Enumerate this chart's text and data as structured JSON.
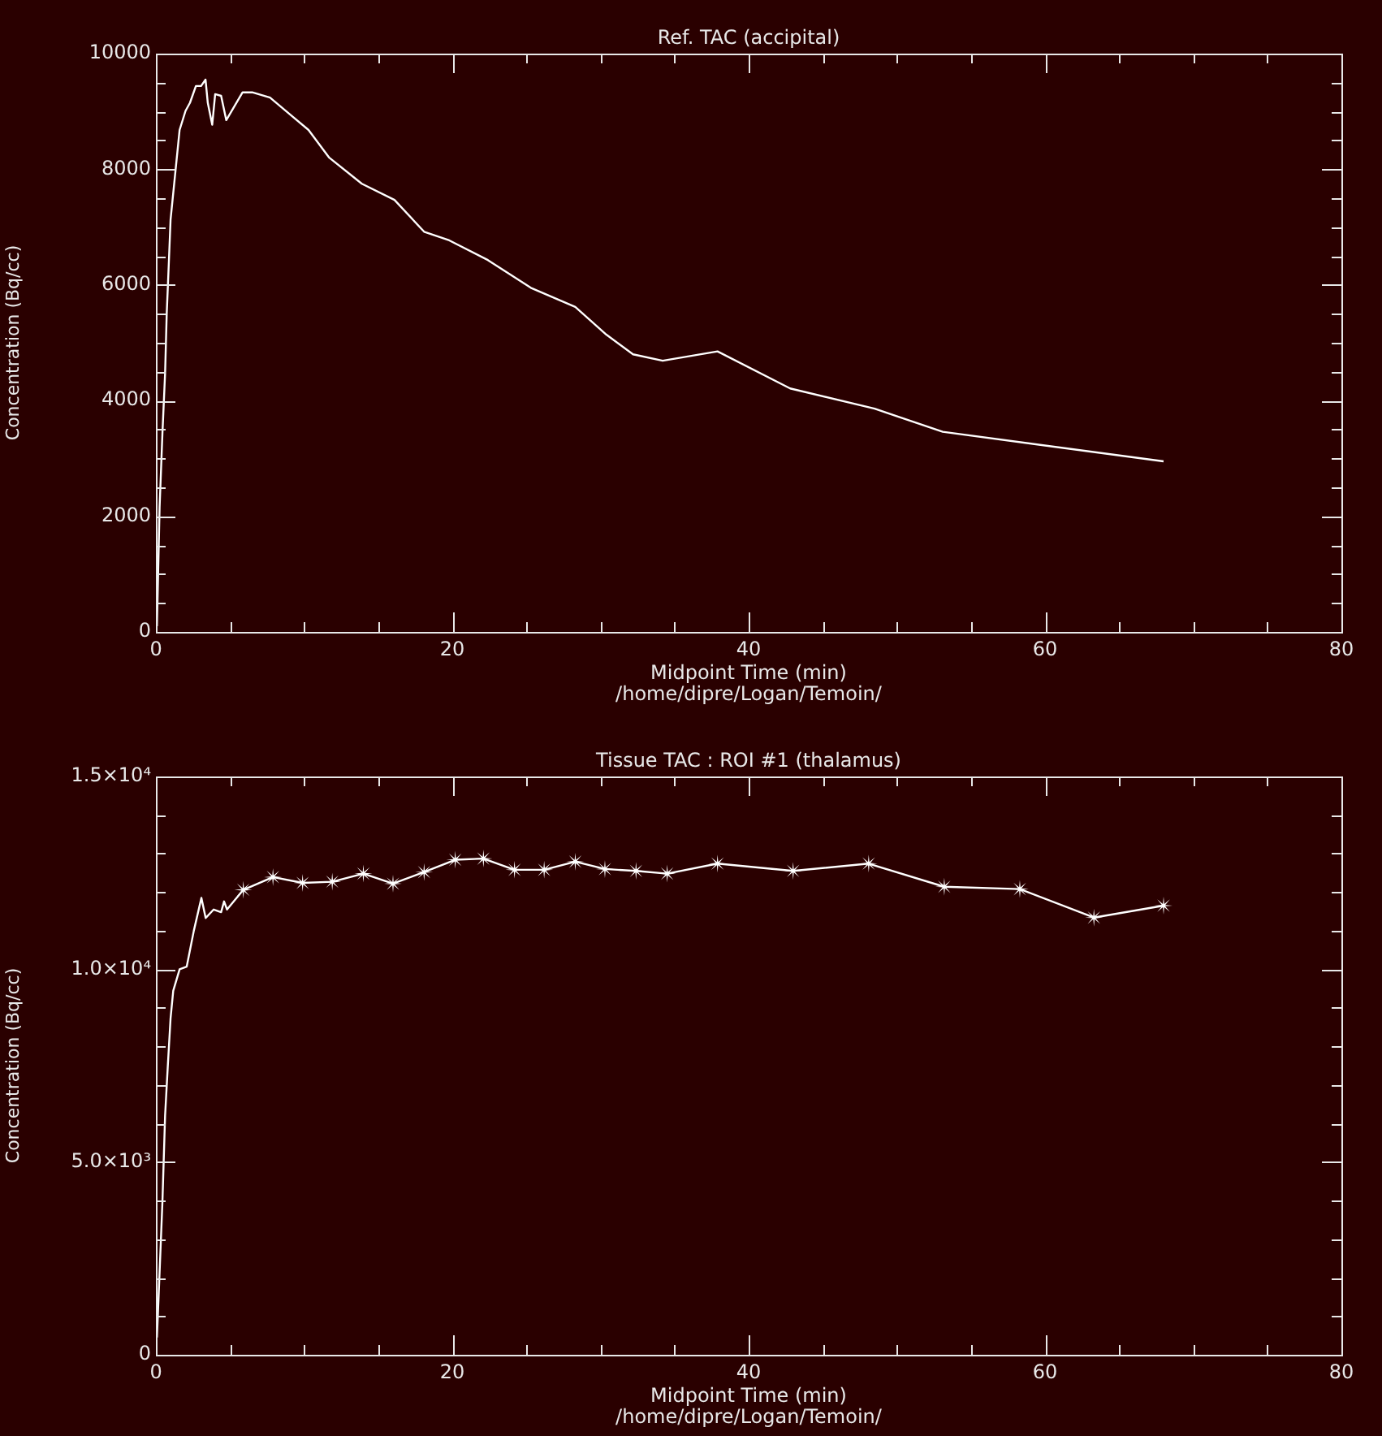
{
  "chart_data": [
    {
      "type": "line",
      "title": "Ref. TAC (accipital)",
      "xlabel": "Midpoint Time (min)",
      "ylabel": "Concentration (Bq/cc)",
      "annotations": [
        "/home/dipre/Logan/Temoin/"
      ],
      "series": [
        {
          "color": "#ffffff",
          "marker": "none",
          "x": [
            0.07,
            0.25,
            0.44,
            0.62,
            0.73,
            0.88,
            0.99,
            1.6,
            2.0,
            2.3,
            2.7,
            3.05,
            3.35,
            3.5,
            3.8,
            4.0,
            4.4,
            4.75,
            5.85,
            6.5,
            7.7,
            9.0,
            10.3,
            11.7,
            13.9,
            16.1,
            18.1,
            19.8,
            22.4,
            25.3,
            28.3,
            30.4,
            32.2,
            34.2,
            37.9,
            42.8,
            48.5,
            53.1,
            68.0
          ],
          "values": [
            100,
            2160,
            3430,
            4470,
            5500,
            6430,
            7130,
            8680,
            9010,
            9150,
            9440,
            9440,
            9550,
            9150,
            8770,
            9300,
            9270,
            8850,
            9330,
            9330,
            9240,
            8960,
            8680,
            8200,
            7750,
            7470,
            6920,
            6770,
            6430,
            5950,
            5620,
            5140,
            4800,
            4690,
            4850,
            4210,
            3860,
            3460,
            2950
          ]
        }
      ],
      "xlim": [
        0,
        80
      ],
      "xticks": [
        0,
        {
          "value": 5,
          "label": null
        },
        {
          "value": 10,
          "label": null
        },
        {
          "value": 15,
          "label": null
        },
        20,
        {
          "value": 25,
          "label": null
        },
        {
          "value": 30,
          "label": null
        },
        {
          "value": 35,
          "label": null
        },
        40,
        {
          "value": 45,
          "label": null
        },
        {
          "value": 50,
          "label": null
        },
        {
          "value": 55,
          "label": null
        },
        60,
        {
          "value": 65,
          "label": null
        },
        {
          "value": 70,
          "label": null
        },
        {
          "value": 75,
          "label": null
        },
        80
      ],
      "ylim": [
        0,
        10000
      ],
      "yticks": [
        0,
        {
          "value": 500,
          "label": null
        },
        {
          "value": 1000,
          "label": null
        },
        {
          "value": 1500,
          "label": null
        },
        2000,
        {
          "value": 2500,
          "label": null
        },
        {
          "value": 3000,
          "label": null
        },
        {
          "value": 3500,
          "label": null
        },
        4000,
        {
          "value": 4500,
          "label": null
        },
        {
          "value": 5000,
          "label": null
        },
        {
          "value": 5500,
          "label": null
        },
        6000,
        {
          "value": 6500,
          "label": null
        },
        {
          "value": 7000,
          "label": null
        },
        {
          "value": 7500,
          "label": null
        },
        8000,
        {
          "value": 8500,
          "label": null
        },
        {
          "value": 9000,
          "label": null
        },
        {
          "value": 9500,
          "label": null
        },
        10000
      ],
      "grid": false,
      "legend": false
    },
    {
      "type": "line",
      "title": "Tissue TAC : ROI #1 (thalamus)",
      "xlabel": "Midpoint Time (min)",
      "ylabel": "Concentration (Bq/cc)",
      "annotations": [
        "/home/dipre/Logan/Temoin/"
      ],
      "series": [
        {
          "color": "#ffffff",
          "marker": "none",
          "x": [
            0.07,
            0.25,
            0.44,
            0.62,
            0.8,
            0.99,
            1.17,
            1.6,
            2.08,
            2.56,
            3.07,
            3.36,
            3.9,
            4.4,
            4.6,
            4.8,
            5.9
          ],
          "values": [
            450,
            2150,
            3960,
            6200,
            7470,
            8730,
            9440,
            10000,
            10070,
            11000,
            11850,
            11330,
            11550,
            11480,
            11760,
            11550,
            12060
          ]
        },
        {
          "color": "#ffffff",
          "marker": "star",
          "x": [
            5.9,
            7.9,
            9.9,
            11.9,
            14.0,
            16.0,
            18.1,
            20.2,
            22.1,
            24.2,
            26.2,
            28.3,
            30.3,
            32.4,
            34.5,
            37.9,
            43.0,
            48.1,
            53.2,
            58.3,
            63.3,
            68.0
          ],
          "values": [
            12060,
            12390,
            12240,
            12270,
            12480,
            12220,
            12520,
            12840,
            12870,
            12580,
            12580,
            12790,
            12600,
            12550,
            12480,
            12740,
            12550,
            12740,
            12140,
            12080,
            11340,
            11650
          ]
        }
      ],
      "xlim": [
        0,
        80
      ],
      "xticks": [
        0,
        {
          "value": 5,
          "label": null
        },
        {
          "value": 10,
          "label": null
        },
        {
          "value": 15,
          "label": null
        },
        20,
        {
          "value": 25,
          "label": null
        },
        {
          "value": 30,
          "label": null
        },
        {
          "value": 35,
          "label": null
        },
        40,
        {
          "value": 45,
          "label": null
        },
        {
          "value": 50,
          "label": null
        },
        {
          "value": 55,
          "label": null
        },
        60,
        {
          "value": 65,
          "label": null
        },
        {
          "value": 70,
          "label": null
        },
        {
          "value": 75,
          "label": null
        },
        80
      ],
      "ylim": [
        0,
        15000
      ],
      "yticks": [
        0,
        {
          "value": 1000,
          "label": null
        },
        {
          "value": 2000,
          "label": null
        },
        {
          "value": 3000,
          "label": null
        },
        {
          "value": 4000,
          "label": null
        },
        {
          "value": 5000,
          "label": "5.0×10³"
        },
        {
          "value": 6000,
          "label": null
        },
        {
          "value": 7000,
          "label": null
        },
        {
          "value": 8000,
          "label": null
        },
        {
          "value": 9000,
          "label": null
        },
        {
          "value": 10000,
          "label": "1.0×10⁴"
        },
        {
          "value": 11000,
          "label": null
        },
        {
          "value": 12000,
          "label": null
        },
        {
          "value": 13000,
          "label": null
        },
        {
          "value": 14000,
          "label": null
        },
        {
          "value": 15000,
          "label": "1.5×10⁴"
        }
      ],
      "grid": false,
      "legend": false
    }
  ]
}
